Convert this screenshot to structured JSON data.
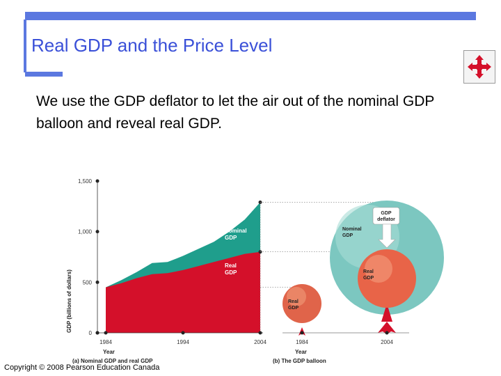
{
  "slide": {
    "title": "Real GDP and the Price Level",
    "body": "We use the GDP deflator to let the air out of the nominal GDP balloon and reveal real GDP.",
    "copyright": "Copyright © 2008 Pearson Education Canada",
    "accent_color": "#5b78e0",
    "title_color": "#3a50d8",
    "nav_icon": "move-arrows-icon"
  },
  "chart_data": {
    "type": "area",
    "ylabel": "GDP (billions of dollars)",
    "xlabel": "Year",
    "ylim": [
      0,
      1500
    ],
    "yticks": [
      "0",
      "500",
      "1,000",
      "1,500"
    ],
    "x": [
      1984,
      1986,
      1988,
      1990,
      1992,
      1994,
      1996,
      1998,
      2000,
      2002,
      2004
    ],
    "xticks": [
      "1984",
      "1994",
      "2004"
    ],
    "series": [
      {
        "name": "Nominal GDP",
        "color": "#1f9e8c",
        "values": [
          450,
          520,
          600,
          690,
          700,
          760,
          830,
          900,
          1000,
          1120,
          1290
        ]
      },
      {
        "name": "Real GDP",
        "color": "#d4102a",
        "values": [
          450,
          490,
          540,
          580,
          590,
          620,
          660,
          700,
          740,
          780,
          800
        ]
      }
    ],
    "panel_a_caption": "(a) Nominal GDP and real GDP",
    "panel_b_caption": "(b) The GDP balloon",
    "balloon_1984": {
      "year": "1984",
      "label": "Real GDP"
    },
    "balloon_2004": {
      "year": "2004",
      "nominal_label": "Nominal GDP",
      "real_label": "Real GDP",
      "deflator_label": "GDP deflator"
    },
    "colors": {
      "nominal": "#1f9e8c",
      "real": "#d4102a",
      "balloon_big": "#7cc7c0",
      "balloon_real": "#f07050"
    }
  }
}
